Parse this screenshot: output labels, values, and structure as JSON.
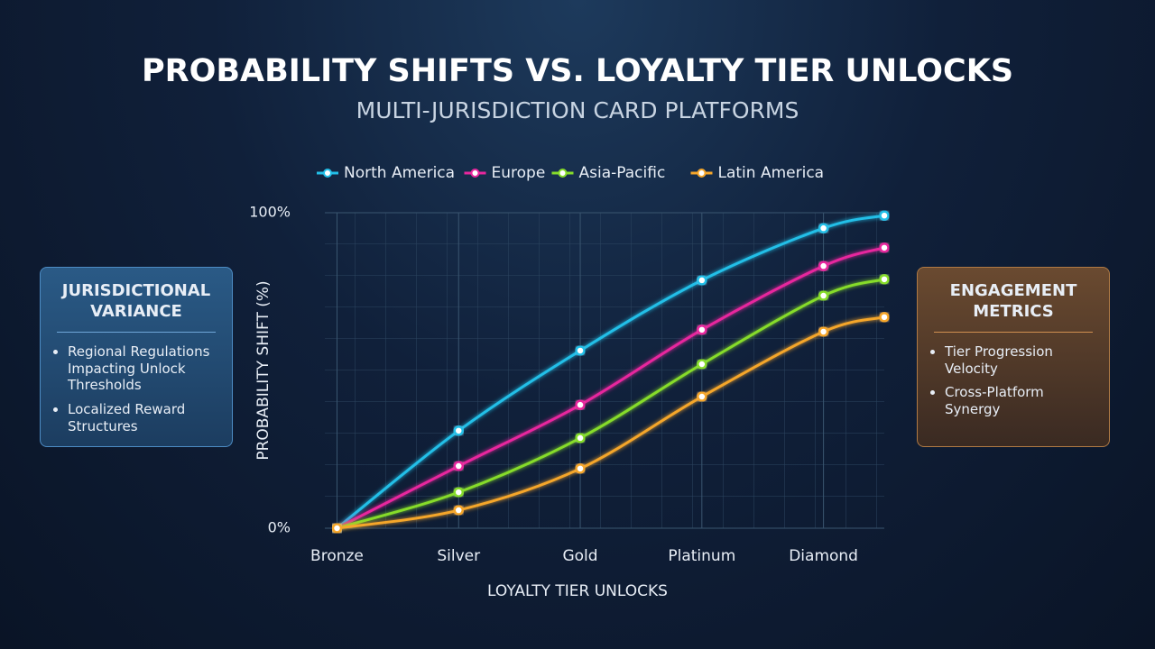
{
  "chart_data": {
    "type": "line",
    "title": "PROBABILITY SHIFTS VS. LOYALTY TIER UNLOCKS",
    "subtitle": "MULTI-JURISDICTION CARD PLATFORMS",
    "x_label": "LOYALTY TIER UNLOCKS",
    "y_label": "PROBABILITY SHIFT (%)",
    "x": [
      0,
      1,
      2,
      3,
      4,
      4.5
    ],
    "xlim": [
      -0.1,
      4.5
    ],
    "xticks": [
      {
        "value": 0,
        "label": "Bronze"
      },
      {
        "value": 1,
        "label": "Silver"
      },
      {
        "value": 2,
        "label": "Gold"
      },
      {
        "value": 3,
        "label": "Platinum"
      },
      {
        "value": 4,
        "label": "Diamond"
      }
    ],
    "ylim": [
      0,
      100
    ],
    "yticks": [
      {
        "value": 0,
        "label": "0%"
      },
      {
        "value": 100,
        "label": "100%"
      }
    ],
    "grid": true,
    "legend": "top",
    "series": [
      {
        "name": "North America",
        "color": "#22bfe8",
        "values": [
          0,
          30.9,
          56.3,
          78.6,
          95.1,
          99.1
        ]
      },
      {
        "name": "Europe",
        "color": "#e8279e",
        "values": [
          0,
          19.7,
          39.1,
          62.9,
          83.1,
          88.9
        ]
      },
      {
        "name": "Asia-Pacific",
        "color": "#86dc2a",
        "values": [
          0,
          11.4,
          28.6,
          52,
          73.7,
          78.9
        ]
      },
      {
        "name": "Latin America",
        "color": "#f5a62a",
        "values": [
          0,
          5.7,
          18.9,
          41.7,
          62.3,
          66.9
        ]
      }
    ]
  },
  "panels": {
    "left": {
      "title": "JURISDICTIONAL VARIANCE",
      "items": [
        "Regional Regulations Impacting Unlock Thresholds",
        "Localized Reward Structures"
      ]
    },
    "right": {
      "title": "ENGAGEMENT METRICS",
      "items": [
        "Tier Progression Velocity",
        "Cross-Platform Synergy"
      ]
    }
  }
}
